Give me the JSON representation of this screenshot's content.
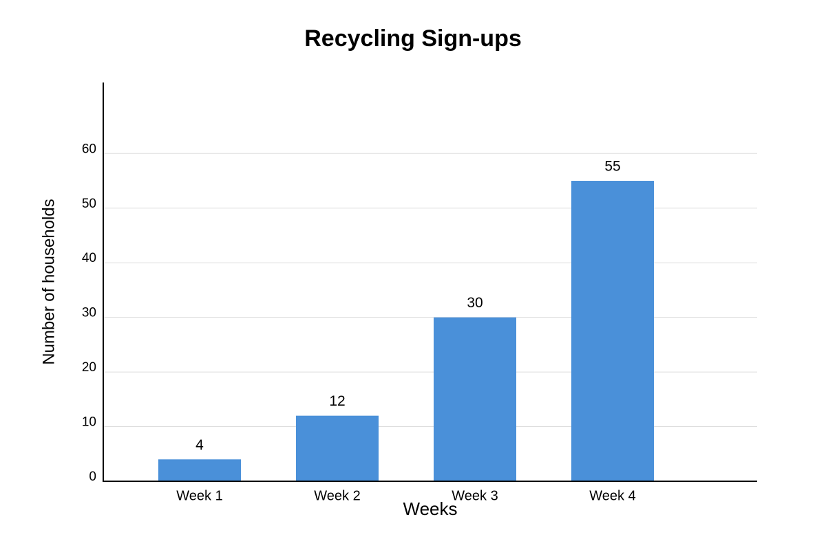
{
  "chart_data": {
    "type": "bar",
    "title": "Recycling Sign-ups",
    "x_label": "Weeks",
    "y_label": "Number of households",
    "categories": [
      "Week 1",
      "Week 2",
      "Week 3",
      "Week 4"
    ],
    "values": [
      4,
      12,
      30,
      55
    ],
    "color": "#4a90d9",
    "ylim": [
      0,
      73
    ],
    "yticks": [
      0,
      10,
      20,
      30,
      40,
      50,
      60
    ],
    "grid": true
  }
}
